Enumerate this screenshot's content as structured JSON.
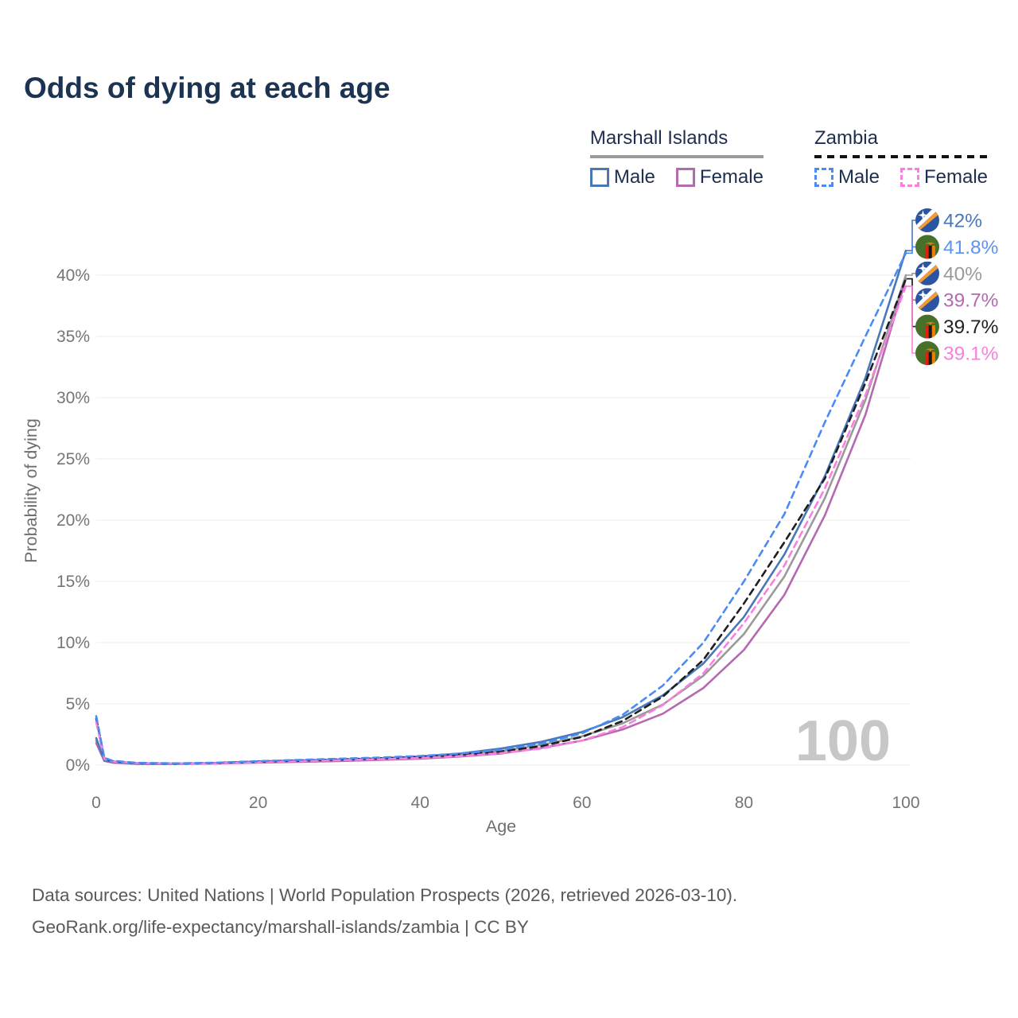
{
  "page": {
    "title": "Odds of dying at each age"
  },
  "legend": {
    "groups": [
      {
        "name": "Marshall Islands",
        "line_style": "solid",
        "underline_color": "#9a9a9a",
        "items": [
          {
            "label": "Male",
            "color": "#4878b8",
            "dashed": false
          },
          {
            "label": "Female",
            "color": "#b46ab0",
            "dashed": false
          }
        ]
      },
      {
        "name": "Zambia",
        "line_style": "dashed",
        "underline_color": "#1f1f1f",
        "items": [
          {
            "label": "Male",
            "color": "#4b8bf5",
            "dashed": true
          },
          {
            "label": "Female",
            "color": "#fb7ee0",
            "dashed": true
          }
        ]
      }
    ]
  },
  "chart_data": {
    "type": "line",
    "title": "Odds of dying at each age",
    "xlabel": "Age",
    "ylabel": "Probability of dying",
    "xlim": [
      0,
      100
    ],
    "ylim": [
      0,
      44
    ],
    "xticks": [
      0,
      20,
      40,
      60,
      80,
      100
    ],
    "yticks": [
      0,
      5,
      10,
      15,
      20,
      25,
      30,
      35,
      40
    ],
    "ytick_suffix": "%",
    "grid": "horizontal",
    "legend_position": "top-right",
    "x": [
      0,
      1,
      2,
      5,
      10,
      15,
      20,
      25,
      30,
      35,
      40,
      45,
      50,
      55,
      60,
      65,
      70,
      75,
      80,
      85,
      90,
      95,
      100
    ],
    "series": [
      {
        "id": "mi_total",
        "name": "Marshall Islands — Both sexes",
        "country": "Marshall Islands",
        "sex": "both",
        "color": "#9a9a9a",
        "dashed": false,
        "values": [
          2.0,
          0.37,
          0.22,
          0.11,
          0.1,
          0.16,
          0.26,
          0.33,
          0.4,
          0.48,
          0.6,
          0.82,
          1.15,
          1.65,
          2.35,
          3.4,
          4.95,
          7.3,
          10.7,
          15.4,
          21.8,
          29.8,
          40.0
        ]
      },
      {
        "id": "mi_female",
        "name": "Marshall Islands — Female",
        "country": "Marshall Islands",
        "sex": "female",
        "color": "#b46ab0",
        "dashed": false,
        "values": [
          1.8,
          0.33,
          0.2,
          0.1,
          0.09,
          0.13,
          0.2,
          0.26,
          0.33,
          0.42,
          0.52,
          0.7,
          0.95,
          1.4,
          2.0,
          2.9,
          4.2,
          6.3,
          9.4,
          13.9,
          20.4,
          28.6,
          39.7
        ]
      },
      {
        "id": "mi_male",
        "name": "Marshall Islands — Male",
        "country": "Marshall Islands",
        "sex": "male",
        "color": "#4878b8",
        "dashed": false,
        "values": [
          2.2,
          0.4,
          0.25,
          0.12,
          0.1,
          0.18,
          0.3,
          0.38,
          0.45,
          0.55,
          0.7,
          0.95,
          1.35,
          1.9,
          2.7,
          3.9,
          5.7,
          8.3,
          12.1,
          17.2,
          23.6,
          31.6,
          42.0
        ]
      },
      {
        "id": "zm_total",
        "name": "Zambia — Both sexes",
        "country": "Zambia",
        "sex": "both",
        "color": "#1f1f1f",
        "dashed": true,
        "values": [
          3.8,
          0.55,
          0.32,
          0.17,
          0.13,
          0.18,
          0.28,
          0.37,
          0.46,
          0.55,
          0.66,
          0.85,
          1.12,
          1.55,
          2.3,
          3.6,
          5.6,
          8.6,
          13.2,
          18.2,
          23.4,
          31.2,
          39.7
        ]
      },
      {
        "id": "zm_female",
        "name": "Zambia — Female",
        "country": "Zambia",
        "sex": "female",
        "color": "#fb7ee0",
        "dashed": true,
        "values": [
          3.5,
          0.5,
          0.3,
          0.16,
          0.12,
          0.16,
          0.24,
          0.32,
          0.4,
          0.48,
          0.58,
          0.74,
          0.98,
          1.35,
          2.0,
          3.1,
          4.9,
          7.5,
          11.6,
          16.3,
          22.6,
          30.2,
          39.1
        ]
      },
      {
        "id": "zm_male",
        "name": "Zambia — Male",
        "country": "Zambia",
        "sex": "male",
        "color": "#4b8bf5",
        "dashed": true,
        "values": [
          4.0,
          0.6,
          0.35,
          0.18,
          0.14,
          0.2,
          0.32,
          0.42,
          0.52,
          0.62,
          0.75,
          0.95,
          1.25,
          1.75,
          2.6,
          4.1,
          6.5,
          10.0,
          15.0,
          20.5,
          28.0,
          35.0,
          41.8
        ]
      }
    ]
  },
  "annotations": {
    "watermark": "100",
    "end_labels": [
      {
        "series": "mi_male",
        "flag": "marshall-islands",
        "text": "42%",
        "color": "#4878b8"
      },
      {
        "series": "zm_male",
        "flag": "zambia",
        "text": "41.8%",
        "color": "#5b93f5"
      },
      {
        "series": "mi_total",
        "flag": "marshall-islands",
        "text": "40%",
        "color": "#9a9a9a"
      },
      {
        "series": "mi_female",
        "flag": "marshall-islands",
        "text": "39.7%",
        "color": "#b46ab0"
      },
      {
        "series": "zm_total",
        "flag": "zambia",
        "text": "39.7%",
        "color": "#222222"
      },
      {
        "series": "zm_female",
        "flag": "zambia",
        "text": "39.1%",
        "color": "#fb7ee0"
      }
    ]
  },
  "footer": {
    "line1": "Data sources: United Nations | World Population Prospects (2026, retrieved 2026-03-10).",
    "line2": "GeoRank.org/life-expectancy/marshall-islands/zambia | CC BY"
  }
}
